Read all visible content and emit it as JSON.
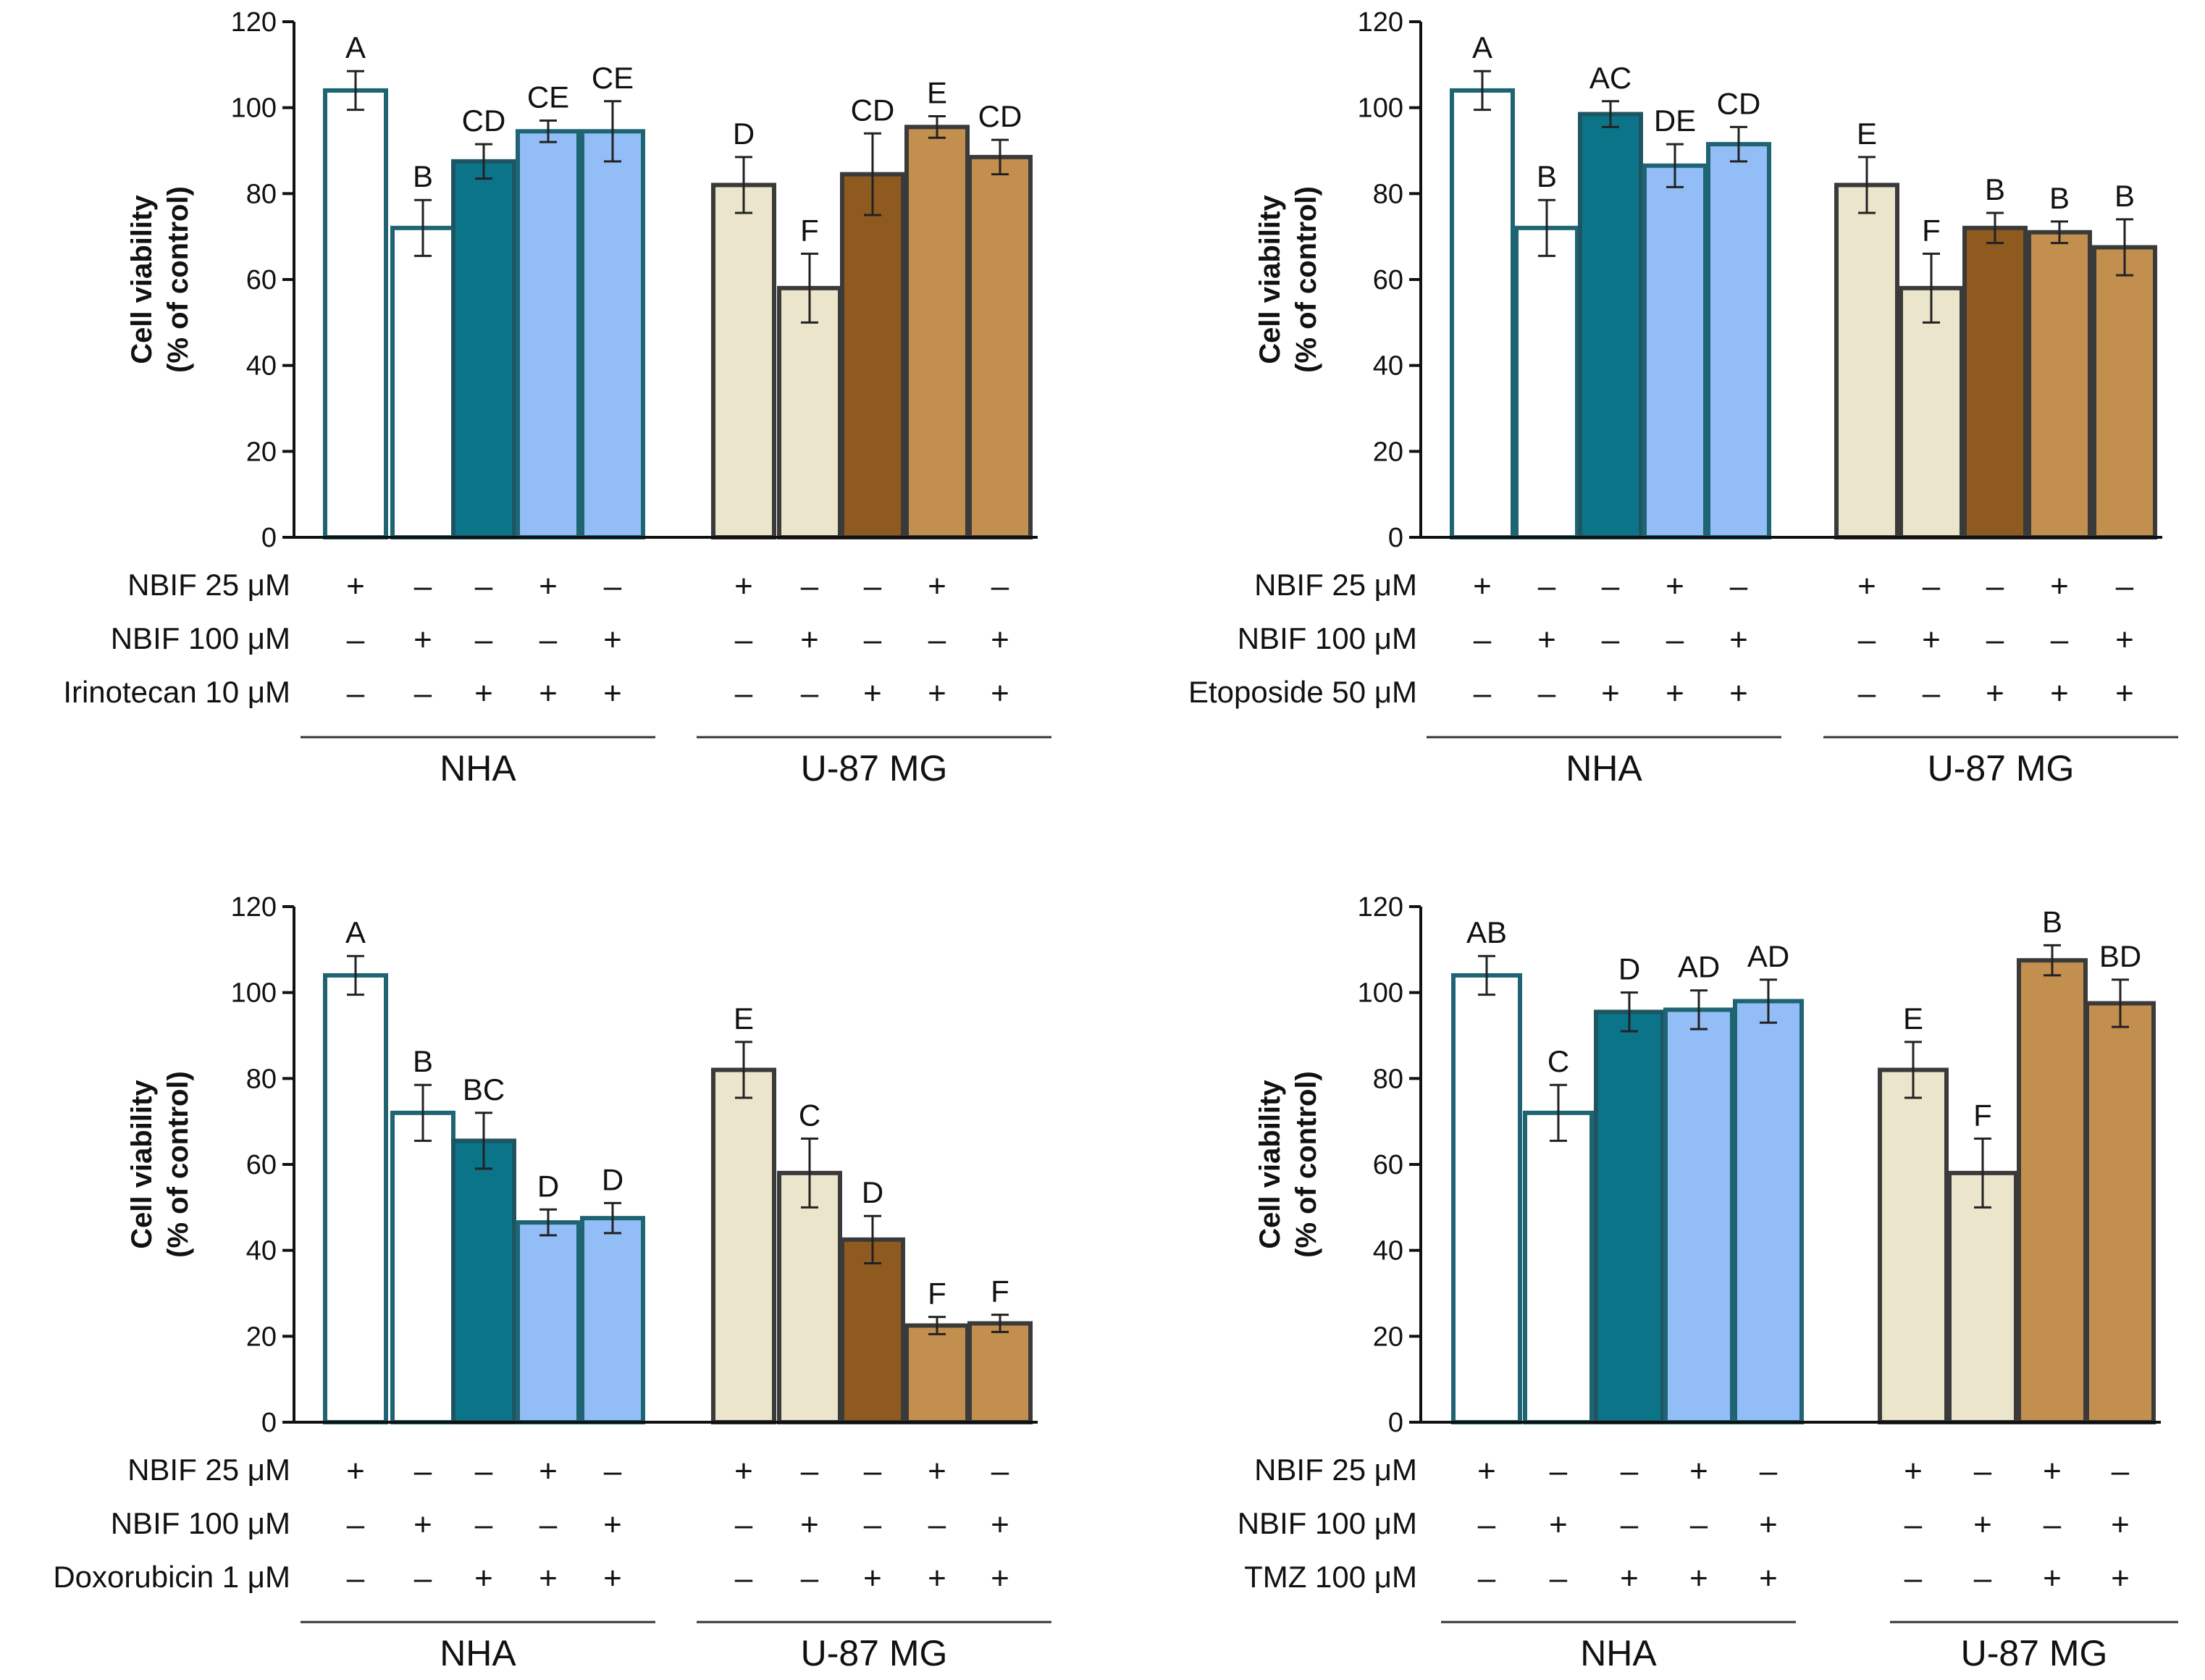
{
  "chart_data": [
    {
      "type": "bar",
      "panel": "top-left",
      "ylabel": [
        "Cell viability",
        "(% of control)"
      ],
      "ylim": [
        0,
        120
      ],
      "yticks": [
        "0",
        "20",
        "40",
        "60",
        "80",
        "100",
        "120"
      ],
      "bars": [
        {
          "value": 104,
          "error": 4.5,
          "letter": "A",
          "color": "#ffffff",
          "edge": "#1e6472"
        },
        {
          "value": 72,
          "error": 6.5,
          "letter": "B",
          "color": "#ffffff",
          "edge": "#1e6472"
        },
        {
          "value": 87.5,
          "error": 4,
          "letter": "CD",
          "color": "#0b7489",
          "edge": "#1e5562"
        },
        {
          "value": 94.5,
          "error": 2.5,
          "letter": "CE",
          "color": "#92bdf6",
          "edge": "#1e6472"
        },
        {
          "value": 94.5,
          "error": 7,
          "letter": "CE",
          "color": "#92bdf6",
          "edge": "#1e6472"
        },
        {
          "value": 82,
          "error": 6.5,
          "letter": "D",
          "color": "#ebe5cb",
          "edge": "#3a3a3a"
        },
        {
          "value": 58,
          "error": 8,
          "letter": "F",
          "color": "#ebe5cb",
          "edge": "#3a3a3a"
        },
        {
          "value": 84.5,
          "error": 9.5,
          "letter": "CD",
          "color": "#8f5a20",
          "edge": "#3a3a3a"
        },
        {
          "value": 95.5,
          "error": 2.5,
          "letter": "E",
          "color": "#c28f4f",
          "edge": "#3a3a3a"
        },
        {
          "value": 88.5,
          "error": 4,
          "letter": "CD",
          "color": "#c28f4f",
          "edge": "#3a3a3a"
        }
      ],
      "rows": [
        {
          "label": "NBIF 25 μM",
          "signs": [
            "+",
            "-",
            "-",
            "+",
            "-",
            "+",
            "-",
            "-",
            "+",
            "-"
          ]
        },
        {
          "label": "NBIF 100 μM",
          "signs": [
            "-",
            "+",
            "-",
            "-",
            "+",
            "-",
            "+",
            "-",
            "-",
            "+"
          ]
        },
        {
          "label": "Irinotecan 10 μM",
          "signs": [
            "-",
            "-",
            "+",
            "+",
            "+",
            "-",
            "-",
            "+",
            "+",
            "+"
          ]
        }
      ],
      "groups": [
        "NHA",
        "U-87 MG"
      ]
    },
    {
      "type": "bar",
      "panel": "top-right",
      "ylabel": [
        "Cell viability",
        "(% of control)"
      ],
      "ylim": [
        0,
        120
      ],
      "yticks": [
        "0",
        "20",
        "40",
        "60",
        "80",
        "100",
        "120"
      ],
      "bars": [
        {
          "value": 104,
          "error": 4.5,
          "letter": "A",
          "color": "#ffffff",
          "edge": "#1e6472"
        },
        {
          "value": 72,
          "error": 6.5,
          "letter": "B",
          "color": "#ffffff",
          "edge": "#1e6472"
        },
        {
          "value": 98.5,
          "error": 3,
          "letter": "AC",
          "color": "#0b7489",
          "edge": "#1e5562"
        },
        {
          "value": 86.5,
          "error": 5,
          "letter": "DE",
          "color": "#92bdf6",
          "edge": "#1e6472"
        },
        {
          "value": 91.5,
          "error": 4,
          "letter": "CD",
          "color": "#92bdf6",
          "edge": "#1e6472"
        },
        {
          "value": 82,
          "error": 6.5,
          "letter": "E",
          "color": "#ebe5cb",
          "edge": "#3a3a3a"
        },
        {
          "value": 58,
          "error": 8,
          "letter": "F",
          "color": "#ebe5cb",
          "edge": "#3a3a3a"
        },
        {
          "value": 72,
          "error": 3.5,
          "letter": "B",
          "color": "#8f5a20",
          "edge": "#3a3a3a"
        },
        {
          "value": 71,
          "error": 2.5,
          "letter": "B",
          "color": "#c28f4f",
          "edge": "#3a3a3a"
        },
        {
          "value": 67.5,
          "error": 6.5,
          "letter": "B",
          "color": "#c28f4f",
          "edge": "#3a3a3a"
        }
      ],
      "rows": [
        {
          "label": "NBIF 25 μM",
          "signs": [
            "+",
            "-",
            "-",
            "+",
            "-",
            "+",
            "-",
            "-",
            "+",
            "-"
          ]
        },
        {
          "label": "NBIF 100 μM",
          "signs": [
            "-",
            "+",
            "-",
            "-",
            "+",
            "-",
            "+",
            "-",
            "-",
            "+"
          ]
        },
        {
          "label": "Etoposide 50 μM",
          "signs": [
            "-",
            "-",
            "+",
            "+",
            "+",
            "-",
            "-",
            "+",
            "+",
            "+"
          ]
        }
      ],
      "groups": [
        "NHA",
        "U-87 MG"
      ]
    },
    {
      "type": "bar",
      "panel": "bottom-left",
      "ylabel": [
        "Cell viability",
        "(% of control)"
      ],
      "ylim": [
        0,
        120
      ],
      "yticks": [
        "0",
        "20",
        "40",
        "60",
        "80",
        "100",
        "120"
      ],
      "bars": [
        {
          "value": 104,
          "error": 4.5,
          "letter": "A",
          "color": "#ffffff",
          "edge": "#1e6472"
        },
        {
          "value": 72,
          "error": 6.5,
          "letter": "B",
          "color": "#ffffff",
          "edge": "#1e6472"
        },
        {
          "value": 65.5,
          "error": 6.5,
          "letter": "BC",
          "color": "#0b7489",
          "edge": "#1e5562"
        },
        {
          "value": 46.5,
          "error": 3,
          "letter": "D",
          "color": "#92bdf6",
          "edge": "#1e6472"
        },
        {
          "value": 47.5,
          "error": 3.5,
          "letter": "D",
          "color": "#92bdf6",
          "edge": "#1e6472"
        },
        {
          "value": 82,
          "error": 6.5,
          "letter": "E",
          "color": "#ebe5cb",
          "edge": "#3a3a3a"
        },
        {
          "value": 58,
          "error": 8,
          "letter": "C",
          "color": "#ebe5cb",
          "edge": "#3a3a3a"
        },
        {
          "value": 42.5,
          "error": 5.5,
          "letter": "D",
          "color": "#8f5a20",
          "edge": "#3a3a3a"
        },
        {
          "value": 22.5,
          "error": 2,
          "letter": "F",
          "color": "#c28f4f",
          "edge": "#3a3a3a"
        },
        {
          "value": 23,
          "error": 2,
          "letter": "F",
          "color": "#c28f4f",
          "edge": "#3a3a3a"
        }
      ],
      "rows": [
        {
          "label": "NBIF 25 μM",
          "signs": [
            "+",
            "-",
            "-",
            "+",
            "-",
            "+",
            "-",
            "-",
            "+",
            "-"
          ]
        },
        {
          "label": "NBIF 100 μM",
          "signs": [
            "-",
            "+",
            "-",
            "-",
            "+",
            "-",
            "+",
            "-",
            "-",
            "+"
          ]
        },
        {
          "label": "Doxorubicin 1 μM",
          "signs": [
            "-",
            "-",
            "+",
            "+",
            "+",
            "-",
            "-",
            "+",
            "+",
            "+"
          ]
        }
      ],
      "groups": [
        "NHA",
        "U-87 MG"
      ]
    },
    {
      "type": "bar",
      "panel": "bottom-right",
      "ylabel": [
        "Cell viability",
        "(% of control)"
      ],
      "ylim": [
        0,
        120
      ],
      "yticks": [
        "0",
        "20",
        "40",
        "60",
        "80",
        "100",
        "120"
      ],
      "bars": [
        {
          "value": 104,
          "error": 4.5,
          "letter": "AB",
          "color": "#ffffff",
          "edge": "#1e6472"
        },
        {
          "value": 72,
          "error": 6.5,
          "letter": "C",
          "color": "#ffffff",
          "edge": "#1e6472"
        },
        {
          "value": 95.5,
          "error": 4.5,
          "letter": "D",
          "color": "#0b7489",
          "edge": "#1e5562"
        },
        {
          "value": 96,
          "error": 4.5,
          "letter": "AD",
          "color": "#92bdf6",
          "edge": "#1e6472"
        },
        {
          "value": 98,
          "error": 5,
          "letter": "AD",
          "color": "#92bdf6",
          "edge": "#1e6472"
        },
        {
          "value": 82,
          "error": 6.5,
          "letter": "E",
          "color": "#ebe5cb",
          "edge": "#3a3a3a"
        },
        {
          "value": 58,
          "error": 8,
          "letter": "F",
          "color": "#ebe5cb",
          "edge": "#3a3a3a"
        },
        {
          "value": 107.5,
          "error": 3.5,
          "letter": "B",
          "color": "#c28f4f",
          "edge": "#3a3a3a"
        },
        {
          "value": 97.5,
          "error": 5.5,
          "letter": "BD",
          "color": "#c28f4f",
          "edge": "#3a3a3a"
        }
      ],
      "rows": [
        {
          "label": "NBIF 25 μM",
          "signs": [
            "+",
            "-",
            "-",
            "+",
            "-",
            "+",
            "-",
            "+",
            "-"
          ]
        },
        {
          "label": "NBIF 100 μM",
          "signs": [
            "-",
            "+",
            "-",
            "-",
            "+",
            "-",
            "+",
            "-",
            "+"
          ]
        },
        {
          "label": "TMZ 100 μM",
          "signs": [
            "-",
            "-",
            "+",
            "+",
            "+",
            "-",
            "-",
            "+",
            "+"
          ]
        }
      ],
      "groups": [
        "NHA",
        "U-87 MG"
      ]
    }
  ]
}
